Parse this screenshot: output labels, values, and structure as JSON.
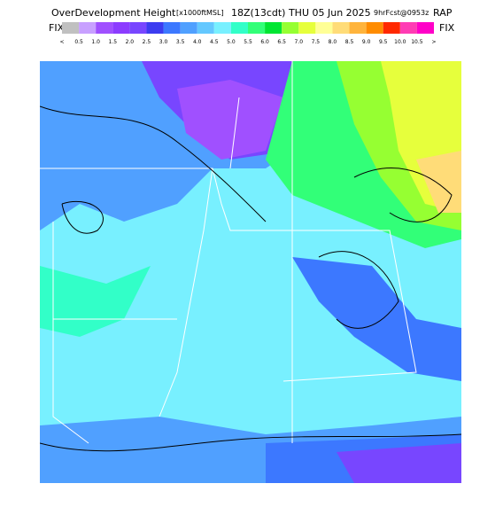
{
  "header": {
    "title": "OverDevelopment Height",
    "units": "[x1000ftMSL]",
    "valid": "18Z(13cdt) THU 05 Jun 2025",
    "forecast": "9hrFcst@0953z",
    "model": "RAP"
  },
  "legend": {
    "left": "FIX",
    "right": "FIX",
    "colors": [
      "#c0c0c0",
      "#c8a0ff",
      "#a050ff",
      "#8c3cff",
      "#7846ff",
      "#3c3cf0",
      "#3c78ff",
      "#50a0ff",
      "#64c8ff",
      "#78f0ff",
      "#32ffc8",
      "#32ff78",
      "#00e632",
      "#96ff32",
      "#e6ff3c",
      "#ffff96",
      "#ffdc78",
      "#ffb43c",
      "#ff8c00",
      "#ff2800",
      "#ff3cb4",
      "#ff00c8"
    ],
    "labels": [
      "<",
      "0.5",
      "1.0",
      "1.5",
      "2.0",
      "2.5",
      "3.0",
      "3.5",
      "4.0",
      "4.5",
      "5.0",
      "5.5",
      "6.0",
      "6.5",
      "7.0",
      "7.5",
      "8.0",
      "8.5",
      "9.0",
      "9.5",
      "10.0",
      "10.5",
      ">"
    ]
  }
}
